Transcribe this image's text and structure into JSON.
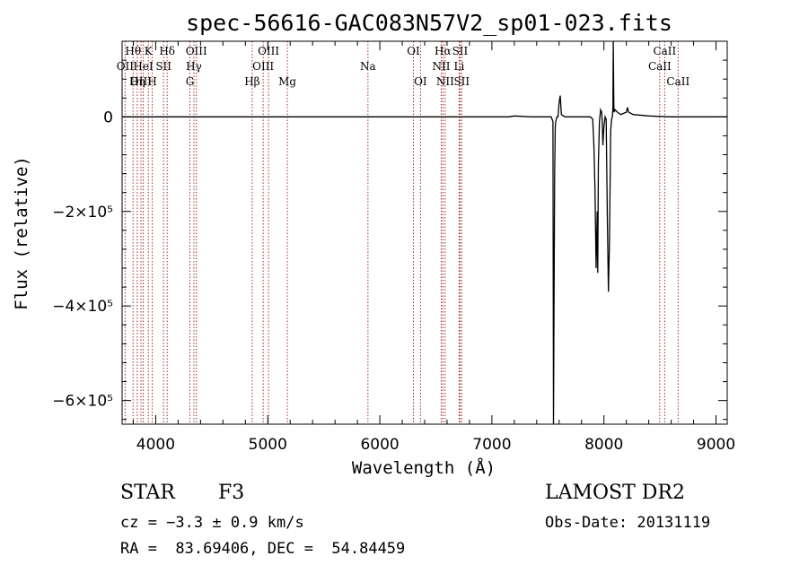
{
  "chart_data": {
    "type": "line",
    "title": "spec-56616-GAC083N57V2_sp01-023.fits",
    "xlabel": "Wavelength (Å)",
    "ylabel": "Flux (relative)",
    "xlim": [
      3700,
      9100
    ],
    "ylim": [
      -650000,
      160000
    ],
    "x_ticks": [
      4000,
      5000,
      6000,
      7000,
      8000,
      9000
    ],
    "y_ticks": [
      {
        "value": 0,
        "label": "0"
      },
      {
        "value": -200000,
        "label": "−2×10⁵"
      },
      {
        "value": -400000,
        "label": "−4×10⁵"
      },
      {
        "value": -600000,
        "label": "−6×10⁵"
      }
    ],
    "grid": false,
    "series": [
      {
        "x": [
          3700,
          4500,
          5500,
          6500,
          7150,
          7200,
          7350,
          7500,
          7530,
          7545,
          7550,
          7560,
          7566,
          7570,
          7580,
          7590,
          7600,
          7610,
          7620,
          7650,
          7700,
          7800,
          7880,
          7900,
          7910,
          7920,
          7930,
          7940,
          7945,
          7950,
          7960,
          7970,
          7980,
          7985,
          7990,
          8000,
          8010,
          8020,
          8030,
          8040,
          8050,
          8060,
          8068,
          8075,
          8080,
          8083,
          8087,
          8090,
          8100,
          8120,
          8150,
          8180,
          8200,
          8210,
          8220,
          8260,
          8400,
          8600,
          8800,
          9000,
          9100
        ],
        "y": [
          0,
          0,
          0,
          0,
          0,
          2000,
          0,
          0,
          0,
          -10000,
          -650000,
          -120000,
          -20000,
          -10000,
          0,
          0,
          30000,
          45000,
          5000,
          0,
          0,
          0,
          0,
          -5000,
          -60000,
          -150000,
          -320000,
          -200000,
          -330000,
          -100000,
          -10000,
          15000,
          10000,
          -10000,
          -60000,
          -20000,
          0,
          -5000,
          -200000,
          -370000,
          -260000,
          -30000,
          -5000,
          0,
          20000,
          160000,
          50000,
          10000,
          15000,
          10000,
          5000,
          8000,
          10000,
          20000,
          10000,
          5000,
          2000,
          0,
          0,
          0,
          0
        ]
      }
    ],
    "emission_lines": [
      {
        "name": "Hθ",
        "wave": 3798,
        "row": 0
      },
      {
        "name": "OII",
        "wave": 3727,
        "row": 1
      },
      {
        "name": "OIII",
        "wave": 3869,
        "row": 2
      },
      {
        "name": "K",
        "wave": 3934,
        "row": 0
      },
      {
        "name": "HeI",
        "wave": 3889,
        "row": 1
      },
      {
        "name": "Hη",
        "wave": 3835,
        "row": 2
      },
      {
        "name": "H",
        "wave": 3969,
        "row": 2
      },
      {
        "name": "Hδ",
        "wave": 4102,
        "row": 0
      },
      {
        "name": "SII",
        "wave": 4070,
        "row": 1
      },
      {
        "name": "OIII",
        "wave": 4363,
        "row": 0
      },
      {
        "name": "Hγ",
        "wave": 4341,
        "row": 1
      },
      {
        "name": "G",
        "wave": 4305,
        "row": 2
      },
      {
        "name": "OIII",
        "wave": 5007,
        "row": 0
      },
      {
        "name": "OIII",
        "wave": 4959,
        "row": 1
      },
      {
        "name": "Hβ",
        "wave": 4861,
        "row": 2
      },
      {
        "name": "Mg",
        "wave": 5175,
        "row": 2
      },
      {
        "name": "Na",
        "wave": 5894,
        "row": 1
      },
      {
        "name": "OI",
        "wave": 6300,
        "row": 0
      },
      {
        "name": "OI",
        "wave": 6363,
        "row": 2
      },
      {
        "name": "Hα",
        "wave": 6563,
        "row": 0
      },
      {
        "name": "NII",
        "wave": 6548,
        "row": 1
      },
      {
        "name": "NII",
        "wave": 6583,
        "row": 2
      },
      {
        "name": "SII",
        "wave": 6716,
        "row": 0
      },
      {
        "name": "Li",
        "wave": 6708,
        "row": 1
      },
      {
        "name": "SII",
        "wave": 6731,
        "row": 2
      },
      {
        "name": "CaII",
        "wave": 8542,
        "row": 0
      },
      {
        "name": "CaII",
        "wave": 8498,
        "row": 1
      },
      {
        "name": "CaII",
        "wave": 8662,
        "row": 2
      }
    ],
    "colors": {
      "spectrum": "#000000",
      "line_markers": "#a52a2a"
    }
  },
  "info": {
    "class_label": "STAR",
    "subclass": "F3",
    "cz": "cz = −3.3 ± 0.9 km/s",
    "coords": "RA =  83.69406, DEC =  54.84459",
    "survey": "LAMOST DR2",
    "obs_date": "Obs-Date: 20131119"
  }
}
